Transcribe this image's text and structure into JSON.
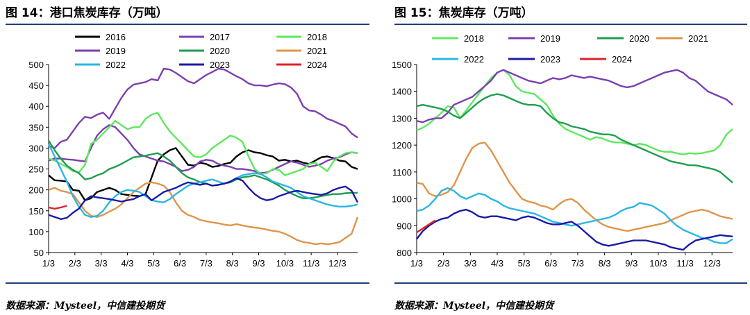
{
  "chart_data": [
    {
      "type": "line",
      "title": "图 14：港口焦炭库存（万吨）",
      "source": "数据来源：Mysteel，中信建投期货",
      "x_ticks": [
        "1/3",
        "2/3",
        "3/3",
        "4/3",
        "5/3",
        "6/3",
        "7/3",
        "8/3",
        "9/3",
        "10/3",
        "11/3",
        "12/3"
      ],
      "y_ticks": [
        "50",
        "100",
        "150",
        "200",
        "250",
        "300",
        "350",
        "400",
        "450",
        "500"
      ],
      "ylim": [
        50,
        500
      ],
      "x_week_range": [
        0,
        51
      ],
      "legend_placement": "top",
      "series": [
        {
          "name": "2016",
          "color": "#000000",
          "values": [
            235,
            223,
            222,
            220,
            200,
            198,
            175,
            180,
            195,
            200,
            205,
            200,
            190,
            188,
            186,
            185,
            190,
            230,
            270,
            285,
            295,
            300,
            280,
            260,
            258,
            265,
            262,
            255,
            257,
            262,
            265,
            280,
            290,
            295,
            290,
            288,
            283,
            280,
            270,
            272,
            268,
            270,
            265,
            262,
            270,
            278,
            280,
            276,
            270,
            268,
            255,
            250
          ]
        },
        {
          "name": "2017",
          "color": "#7b3fb0",
          "values": [
            270,
            275,
            275,
            273,
            272,
            270,
            268,
            300,
            330,
            345,
            355,
            350,
            335,
            320,
            300,
            285,
            280,
            275,
            270,
            268,
            262,
            255,
            245,
            248,
            255,
            268,
            272,
            270,
            262,
            258,
            255,
            250,
            250,
            248,
            245,
            240,
            242,
            248,
            255,
            262,
            268,
            265,
            260,
            255,
            258,
            262,
            270,
            275,
            278,
            285,
            290,
            288
          ]
        },
        {
          "name": "2018",
          "color": "#5de85d",
          "values": [
            275,
            270,
            262,
            255,
            245,
            242,
            260,
            310,
            320,
            335,
            350,
            365,
            355,
            345,
            350,
            350,
            370,
            380,
            385,
            360,
            340,
            325,
            310,
            295,
            280,
            278,
            285,
            300,
            310,
            320,
            330,
            325,
            315,
            280,
            250,
            238,
            240,
            250,
            248,
            235,
            240,
            245,
            250,
            262,
            265,
            255,
            245,
            268,
            280,
            288,
            290,
            288
          ]
        },
        {
          "name": "2019",
          "color": "#7b3fb0",
          "values": [
            305,
            300,
            315,
            320,
            340,
            360,
            375,
            372,
            380,
            385,
            370,
            395,
            420,
            440,
            452,
            455,
            458,
            465,
            462,
            490,
            488,
            480,
            470,
            460,
            455,
            465,
            475,
            482,
            490,
            488,
            480,
            472,
            465,
            455,
            450,
            450,
            448,
            452,
            455,
            453,
            445,
            430,
            400,
            390,
            388,
            380,
            370,
            365,
            358,
            352,
            335,
            325
          ]
        },
        {
          "name": "2020",
          "color": "#1e9e4e",
          "values": [
            318,
            295,
            275,
            258,
            248,
            240,
            225,
            228,
            235,
            240,
            250,
            255,
            262,
            270,
            278,
            280,
            282,
            285,
            288,
            280,
            270,
            255,
            240,
            230,
            225,
            218,
            215,
            210,
            212,
            215,
            218,
            225,
            230,
            232,
            235,
            230,
            225,
            218,
            210,
            200,
            192,
            185,
            180,
            180,
            182,
            185,
            188,
            190,
            190,
            192,
            193,
            193
          ]
        },
        {
          "name": "2021",
          "color": "#e0944a",
          "values": [
            200,
            205,
            198,
            195,
            190,
            170,
            150,
            138,
            135,
            140,
            148,
            155,
            165,
            180,
            195,
            205,
            215,
            218,
            215,
            210,
            195,
            170,
            150,
            140,
            135,
            128,
            125,
            122,
            120,
            117,
            115,
            118,
            115,
            112,
            110,
            108,
            105,
            102,
            100,
            95,
            88,
            80,
            75,
            73,
            70,
            72,
            70,
            72,
            75,
            85,
            95,
            135
          ]
        },
        {
          "name": "2022",
          "color": "#29b6e6",
          "values": [
            310,
            280,
            250,
            220,
            185,
            160,
            140,
            135,
            138,
            150,
            170,
            185,
            195,
            200,
            198,
            195,
            185,
            175,
            172,
            170,
            178,
            190,
            200,
            210,
            215,
            218,
            222,
            225,
            220,
            215,
            220,
            228,
            235,
            238,
            240,
            238,
            230,
            220,
            215,
            210,
            205,
            195,
            185,
            180,
            175,
            170,
            165,
            162,
            160,
            160,
            162,
            165
          ]
        },
        {
          "name": "2023",
          "color": "#1a1aa8",
          "values": [
            140,
            135,
            130,
            133,
            145,
            155,
            175,
            185,
            182,
            180,
            178,
            175,
            172,
            175,
            178,
            185,
            190,
            175,
            185,
            195,
            200,
            205,
            212,
            218,
            215,
            212,
            215,
            210,
            212,
            215,
            220,
            228,
            222,
            205,
            190,
            180,
            175,
            178,
            185,
            190,
            195,
            198,
            195,
            192,
            190,
            188,
            192,
            200,
            205,
            208,
            198,
            170
          ]
        },
        {
          "name": "2024",
          "color": "#e0202a",
          "values": [
            158,
            155,
            158,
            162,
            null,
            null,
            null,
            null,
            null,
            null,
            null,
            null,
            null,
            null,
            null,
            null,
            null,
            null,
            null,
            null,
            null,
            null,
            null,
            null,
            null,
            null,
            null,
            null,
            null,
            null,
            null,
            null,
            null,
            null,
            null,
            null,
            null,
            null,
            null,
            null,
            null,
            null,
            null,
            null,
            null,
            null,
            null,
            null,
            null,
            null,
            null,
            null
          ]
        }
      ]
    },
    {
      "type": "line",
      "title": "图 15：焦炭库存（万吨）",
      "source": "数据来源：Mysteel，中信建投期货",
      "x_ticks": [
        "1/3",
        "2/3",
        "3/3",
        "4/3",
        "5/3",
        "6/3",
        "7/3",
        "8/3",
        "9/3",
        "10/3",
        "11/3",
        "12/3"
      ],
      "y_ticks": [
        "800",
        "900",
        "1000",
        "1100",
        "1200",
        "1300",
        "1400",
        "1500"
      ],
      "ylim": [
        800,
        1500
      ],
      "x_week_range": [
        0,
        51
      ],
      "legend_placement": "top",
      "series": [
        {
          "name": "2018",
          "color": "#5de85d",
          "values": [
            1255,
            1265,
            1280,
            1300,
            1320,
            1345,
            1340,
            1300,
            1330,
            1360,
            1390,
            1420,
            1450,
            1470,
            1480,
            1460,
            1420,
            1400,
            1395,
            1390,
            1370,
            1350,
            1310,
            1280,
            1260,
            1250,
            1240,
            1230,
            1220,
            1230,
            1225,
            1215,
            1210,
            1210,
            1205,
            1200,
            1205,
            1200,
            1190,
            1180,
            1175,
            1175,
            1170,
            1165,
            1170,
            1168,
            1170,
            1175,
            1180,
            1200,
            1240,
            1260
          ]
        },
        {
          "name": "2019",
          "color": "#7b3fb0",
          "values": [
            1290,
            1285,
            1295,
            1300,
            1300,
            1320,
            1350,
            1360,
            1370,
            1380,
            1400,
            1420,
            1440,
            1470,
            1480,
            1470,
            1460,
            1450,
            1440,
            1435,
            1430,
            1440,
            1450,
            1445,
            1450,
            1460,
            1455,
            1450,
            1455,
            1450,
            1445,
            1440,
            1430,
            1420,
            1415,
            1420,
            1430,
            1440,
            1450,
            1460,
            1470,
            1475,
            1480,
            1470,
            1450,
            1440,
            1420,
            1400,
            1390,
            1380,
            1370,
            1350
          ]
        },
        {
          "name": "2020",
          "color": "#1e9e4e",
          "values": [
            1345,
            1350,
            1345,
            1340,
            1335,
            1325,
            1310,
            1300,
            1320,
            1340,
            1360,
            1375,
            1385,
            1390,
            1385,
            1375,
            1365,
            1355,
            1350,
            1350,
            1345,
            1320,
            1300,
            1285,
            1280,
            1270,
            1265,
            1260,
            1250,
            1245,
            1240,
            1240,
            1235,
            1220,
            1210,
            1200,
            1190,
            1180,
            1170,
            1160,
            1150,
            1140,
            1135,
            1130,
            1125,
            1125,
            1120,
            1115,
            1110,
            1100,
            1080,
            1060
          ]
        },
        {
          "name": "2021",
          "color": "#e0944a",
          "values": [
            1060,
            1055,
            1020,
            1010,
            1015,
            1025,
            1050,
            1100,
            1150,
            1190,
            1205,
            1210,
            1180,
            1140,
            1100,
            1060,
            1030,
            1000,
            990,
            985,
            975,
            970,
            960,
            980,
            995,
            1000,
            985,
            960,
            940,
            920,
            905,
            895,
            890,
            885,
            880,
            885,
            890,
            895,
            900,
            905,
            910,
            920,
            930,
            940,
            950,
            955,
            960,
            955,
            945,
            935,
            930,
            925
          ]
        },
        {
          "name": "2022",
          "color": "#29b6e6",
          "values": [
            955,
            960,
            975,
            1000,
            1030,
            1040,
            1030,
            1010,
            1000,
            1010,
            1020,
            1015,
            1000,
            990,
            975,
            965,
            960,
            955,
            950,
            945,
            935,
            925,
            915,
            910,
            905,
            900,
            905,
            910,
            915,
            920,
            925,
            930,
            940,
            955,
            965,
            970,
            985,
            980,
            975,
            960,
            945,
            920,
            900,
            885,
            875,
            865,
            855,
            850,
            840,
            835,
            835,
            850
          ]
        },
        {
          "name": "2023",
          "color": "#1a1aa8",
          "values": [
            850,
            880,
            900,
            915,
            925,
            930,
            945,
            955,
            960,
            950,
            935,
            930,
            935,
            935,
            930,
            925,
            920,
            930,
            935,
            930,
            920,
            910,
            905,
            905,
            910,
            915,
            900,
            880,
            860,
            840,
            830,
            825,
            830,
            835,
            840,
            845,
            845,
            845,
            840,
            835,
            830,
            820,
            815,
            810,
            830,
            845,
            850,
            855,
            860,
            865,
            862,
            860
          ]
        },
        {
          "name": "2024",
          "color": "#e0202a",
          "values": [
            875,
            890,
            905,
            920,
            null,
            null,
            null,
            null,
            null,
            null,
            null,
            null,
            null,
            null,
            null,
            null,
            null,
            null,
            null,
            null,
            null,
            null,
            null,
            null,
            null,
            null,
            null,
            null,
            null,
            null,
            null,
            null,
            null,
            null,
            null,
            null,
            null,
            null,
            null,
            null,
            null,
            null,
            null,
            null,
            null,
            null,
            null,
            null,
            null,
            null,
            null,
            null
          ]
        }
      ]
    }
  ]
}
